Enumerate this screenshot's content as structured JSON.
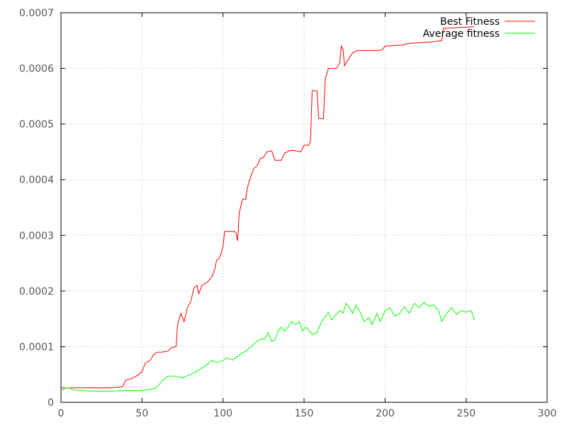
{
  "chart_data": {
    "type": "line",
    "title": "",
    "xlabel": "",
    "ylabel": "",
    "xlim": [
      0,
      300
    ],
    "ylim": [
      0,
      0.0007
    ],
    "grid": true,
    "legend_position": "top-right",
    "x_ticks": [
      0,
      50,
      100,
      150,
      200,
      250,
      300
    ],
    "x_tick_labels": [
      "0",
      "50",
      "100",
      "150",
      "200",
      "250",
      "300"
    ],
    "y_ticks": [
      0,
      0.0001,
      0.0002,
      0.0003,
      0.0004,
      0.0005,
      0.0006,
      0.0007
    ],
    "y_tick_labels": [
      "0",
      "0.0001",
      "0.0002",
      "0.0003",
      "0.0004",
      "0.0005",
      "0.0006",
      "0.0007"
    ],
    "series": [
      {
        "name": "Best Fitness",
        "color": "#ff0000",
        "points": [
          [
            0,
            2.6e-05
          ],
          [
            30,
            2.6e-05
          ],
          [
            34,
            2.7e-05
          ],
          [
            38,
            2.8e-05
          ],
          [
            40,
            4e-05
          ],
          [
            44,
            4.3e-05
          ],
          [
            47,
            4.8e-05
          ],
          [
            50,
            5.5e-05
          ],
          [
            52,
            7e-05
          ],
          [
            55,
            7.5e-05
          ],
          [
            57,
            8.5e-05
          ],
          [
            59,
            9e-05
          ],
          [
            62,
            9e-05
          ],
          [
            66,
            9.2e-05
          ],
          [
            68,
            9.8e-05
          ],
          [
            71,
            0.0001
          ],
          [
            72,
            0.00014
          ],
          [
            74,
            0.00016
          ],
          [
            76,
            0.000145
          ],
          [
            78,
            0.00017
          ],
          [
            80,
            0.00018
          ],
          [
            82,
            0.000205
          ],
          [
            84,
            0.00021
          ],
          [
            85,
            0.000195
          ],
          [
            87,
            0.00021
          ],
          [
            90,
            0.000215
          ],
          [
            93,
            0.000225
          ],
          [
            95,
            0.00024
          ],
          [
            96,
            0.000255
          ],
          [
            98,
            0.00026
          ],
          [
            100,
            0.00028
          ],
          [
            101,
            0.000307
          ],
          [
            107,
            0.000307
          ],
          [
            108,
            0.000305
          ],
          [
            109,
            0.00029
          ],
          [
            110,
            0.00034
          ],
          [
            112,
            0.000365
          ],
          [
            114,
            0.000365
          ],
          [
            115,
            0.000385
          ],
          [
            117,
            0.000405
          ],
          [
            119,
            0.00042
          ],
          [
            121,
            0.000425
          ],
          [
            123,
            0.000438
          ],
          [
            125,
            0.00044
          ],
          [
            127,
            0.00045
          ],
          [
            130,
            0.000452
          ],
          [
            132,
            0.000435
          ],
          [
            136,
            0.000435
          ],
          [
            138,
            0.000448
          ],
          [
            142,
            0.000453
          ],
          [
            145,
            0.000452
          ],
          [
            148,
            0.00045
          ],
          [
            150,
            0.000462
          ],
          [
            153,
            0.000462
          ],
          [
            154,
            0.00047
          ],
          [
            155,
            0.00056
          ],
          [
            158,
            0.00056
          ],
          [
            159,
            0.00051
          ],
          [
            162,
            0.00051
          ],
          [
            163,
            0.00058
          ],
          [
            165,
            0.0006
          ],
          [
            170,
            0.0006
          ],
          [
            172,
            0.00061
          ],
          [
            173,
            0.00064
          ],
          [
            174,
            0.000635
          ],
          [
            175,
            0.000605
          ],
          [
            177,
            0.000615
          ],
          [
            180,
            0.000628
          ],
          [
            183,
            0.000632
          ],
          [
            195,
            0.000632
          ],
          [
            198,
            0.000633
          ],
          [
            200,
            0.00064
          ],
          [
            210,
            0.000642
          ],
          [
            215,
            0.000645
          ],
          [
            230,
            0.000648
          ],
          [
            235,
            0.00065
          ],
          [
            236,
            0.000672
          ],
          [
            250,
            0.000674
          ],
          [
            255,
            0.000675
          ]
        ]
      },
      {
        "name": "Average fitness",
        "color": "#00ff00",
        "points": [
          [
            0,
            2e-05
          ],
          [
            2,
            2.5e-05
          ],
          [
            5,
            2.6e-05
          ],
          [
            8,
            2.2e-05
          ],
          [
            12,
            2.1e-05
          ],
          [
            20,
            2e-05
          ],
          [
            30,
            2e-05
          ],
          [
            40,
            2.1e-05
          ],
          [
            50,
            2.1e-05
          ],
          [
            58,
            2.5e-05
          ],
          [
            60,
            3e-05
          ],
          [
            63,
            4e-05
          ],
          [
            66,
            4.7e-05
          ],
          [
            70,
            4.7e-05
          ],
          [
            75,
            4.4e-05
          ],
          [
            80,
            5e-05
          ],
          [
            85,
            5.8e-05
          ],
          [
            90,
            6.8e-05
          ],
          [
            93,
            7.5e-05
          ],
          [
            96,
            7.2e-05
          ],
          [
            100,
            7.5e-05
          ],
          [
            102,
            8e-05
          ],
          [
            106,
            7.6e-05
          ],
          [
            110,
            8.5e-05
          ],
          [
            114,
            9.2e-05
          ],
          [
            118,
            0.000102
          ],
          [
            122,
            0.000112
          ],
          [
            126,
            0.000115
          ],
          [
            128,
            0.000125
          ],
          [
            130,
            0.00011
          ],
          [
            132,
            0.000112
          ],
          [
            134,
            0.000128
          ],
          [
            136,
            0.000135
          ],
          [
            138,
            0.000128
          ],
          [
            140,
            0.000135
          ],
          [
            142,
            0.000145
          ],
          [
            145,
            0.00014
          ],
          [
            147,
            0.000145
          ],
          [
            149,
            0.000128
          ],
          [
            151,
            0.000135
          ],
          [
            153,
            0.00013
          ],
          [
            155,
            0.000122
          ],
          [
            158,
            0.000125
          ],
          [
            160,
            0.00014
          ],
          [
            162,
            0.00015
          ],
          [
            165,
            0.000162
          ],
          [
            167,
            0.000148
          ],
          [
            170,
            0.000158
          ],
          [
            172,
            0.000165
          ],
          [
            174,
            0.00016
          ],
          [
            176,
            0.000178
          ],
          [
            178,
            0.00017
          ],
          [
            180,
            0.00016
          ],
          [
            182,
            0.000175
          ],
          [
            185,
            0.00016
          ],
          [
            187,
            0.000145
          ],
          [
            190,
            0.000152
          ],
          [
            192,
            0.00014
          ],
          [
            195,
            0.00016
          ],
          [
            197,
            0.000145
          ],
          [
            200,
            0.000165
          ],
          [
            203,
            0.00017
          ],
          [
            206,
            0.000155
          ],
          [
            209,
            0.00016
          ],
          [
            212,
            0.000172
          ],
          [
            215,
            0.00016
          ],
          [
            218,
            0.000178
          ],
          [
            221,
            0.00017
          ],
          [
            224,
            0.00018
          ],
          [
            227,
            0.000172
          ],
          [
            230,
            0.000175
          ],
          [
            233,
            0.000165
          ],
          [
            235,
            0.000145
          ],
          [
            238,
            0.00016
          ],
          [
            241,
            0.00017
          ],
          [
            244,
            0.000158
          ],
          [
            247,
            0.000165
          ],
          [
            250,
            0.000162
          ],
          [
            253,
            0.000165
          ],
          [
            254,
            0.000158
          ],
          [
            255,
            0.000148
          ]
        ]
      }
    ]
  }
}
